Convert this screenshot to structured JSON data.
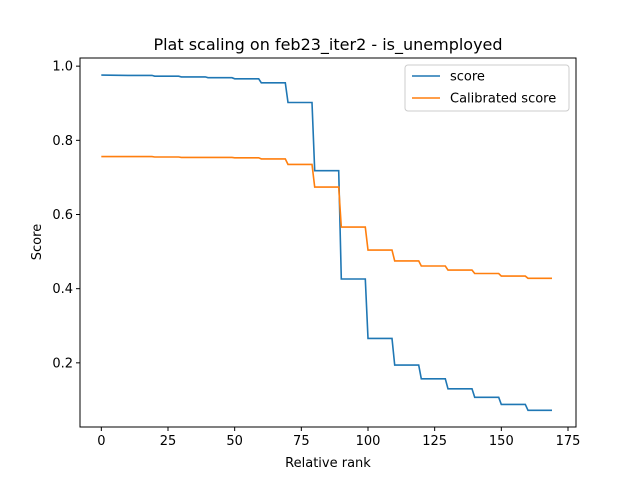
{
  "chart_data": {
    "type": "line",
    "title": "Plat scaling on feb23_iter2 - is_unemployed",
    "xlabel": "Relative rank",
    "ylabel": "Score",
    "xlim": [
      -8,
      178
    ],
    "ylim": [
      0.027,
      1.022
    ],
    "xticks": [
      0,
      25,
      50,
      75,
      100,
      125,
      150,
      175
    ],
    "yticks": [
      0.2,
      0.4,
      0.6,
      0.8,
      1.0
    ],
    "ytick_labels": [
      "0.2",
      "0.4",
      "0.6",
      "0.8",
      "1.0"
    ],
    "grid": false,
    "legend_position": "top-right",
    "series": [
      {
        "name": "score",
        "color": "#1f77b4",
        "x": [
          0,
          10,
          19,
          20,
          29,
          30,
          39,
          40,
          49,
          50,
          59,
          60,
          69,
          70,
          79,
          80,
          89,
          90,
          99,
          100,
          109,
          110,
          119,
          120,
          129,
          130,
          139,
          140,
          149,
          150,
          159,
          160,
          169
        ],
        "y": [
          0.976,
          0.975,
          0.975,
          0.973,
          0.973,
          0.971,
          0.971,
          0.969,
          0.969,
          0.966,
          0.966,
          0.955,
          0.955,
          0.902,
          0.902,
          0.718,
          0.718,
          0.426,
          0.426,
          0.266,
          0.266,
          0.194,
          0.194,
          0.157,
          0.157,
          0.13,
          0.13,
          0.107,
          0.107,
          0.088,
          0.088,
          0.072,
          0.072
        ]
      },
      {
        "name": "Calibrated score",
        "color": "#ff7f0e",
        "x": [
          0,
          10,
          19,
          20,
          29,
          30,
          39,
          40,
          49,
          50,
          59,
          60,
          69,
          70,
          79,
          80,
          89,
          90,
          99,
          100,
          109,
          110,
          119,
          120,
          129,
          130,
          139,
          140,
          149,
          150,
          159,
          160,
          169
        ],
        "y": [
          0.756,
          0.756,
          0.756,
          0.755,
          0.755,
          0.754,
          0.754,
          0.754,
          0.754,
          0.753,
          0.753,
          0.75,
          0.75,
          0.735,
          0.735,
          0.674,
          0.674,
          0.566,
          0.566,
          0.504,
          0.504,
          0.475,
          0.475,
          0.461,
          0.461,
          0.45,
          0.45,
          0.441,
          0.441,
          0.434,
          0.434,
          0.428,
          0.428
        ]
      }
    ]
  }
}
